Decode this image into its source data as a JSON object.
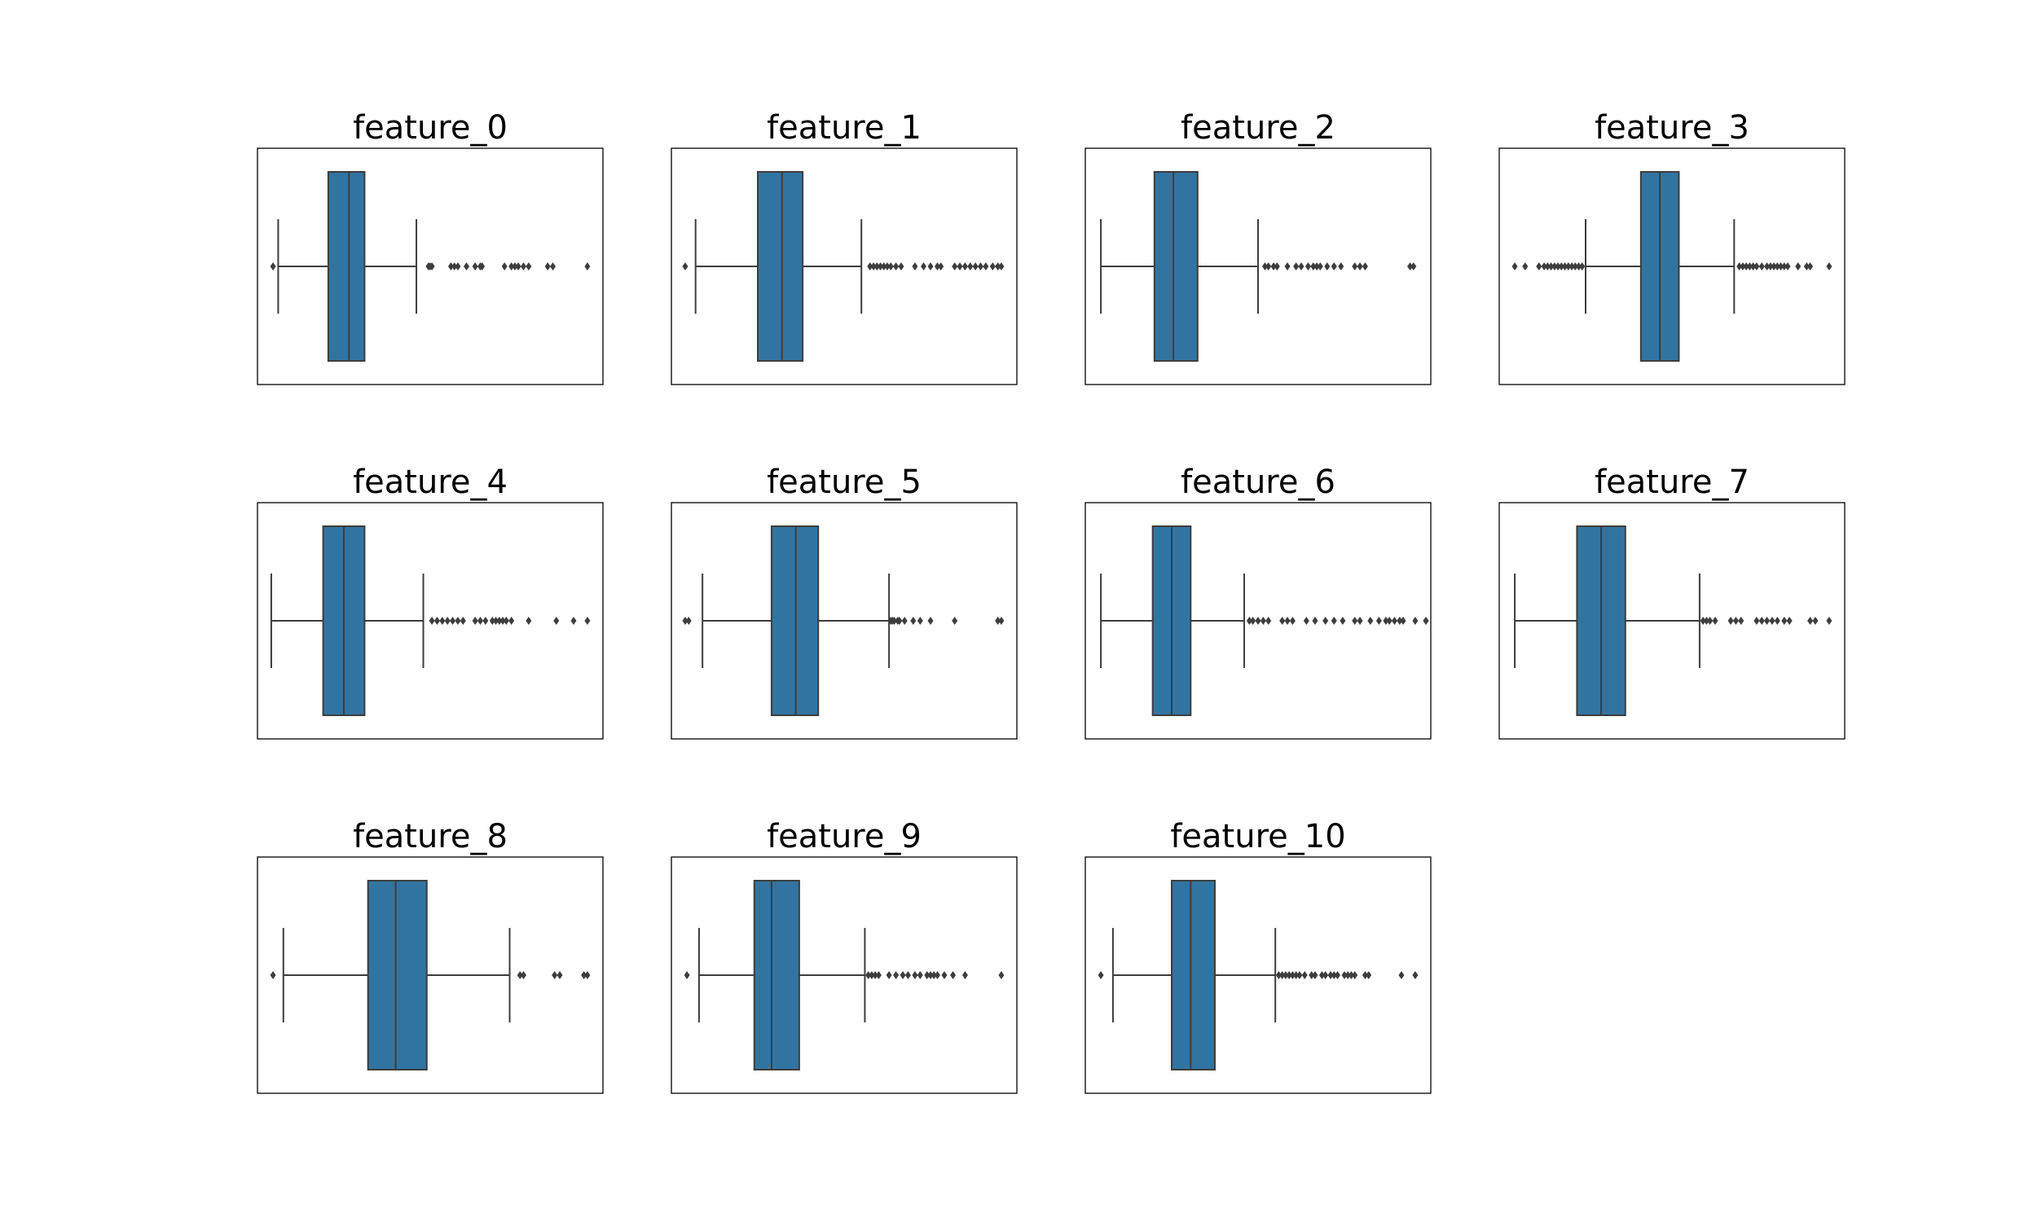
{
  "figure": {
    "layout": "3 rows x 4 columns grid of horizontal box plots",
    "box_color": "#3274a1",
    "line_color": "#3d3d3d"
  },
  "chart_data": [
    {
      "type": "box",
      "title": "feature_0",
      "orientation": "horizontal",
      "xlim": [
        0,
        100
      ],
      "box": {
        "whisker_low": 6,
        "q1": 20.5,
        "median": 26.5,
        "q3": 31,
        "whisker_high": 46
      },
      "outliers": [
        4.5,
        49.5,
        50,
        50.5,
        56,
        57,
        58,
        60.5,
        63,
        64.5,
        65,
        71.5,
        73.5,
        74.5,
        75.5,
        77,
        78.5,
        84,
        85.5,
        95.5
      ]
    },
    {
      "type": "box",
      "title": "feature_1",
      "orientation": "horizontal",
      "xlim": [
        0,
        100
      ],
      "box": {
        "whisker_low": 7,
        "q1": 25,
        "median": 32,
        "q3": 38,
        "whisker_high": 55
      },
      "outliers": [
        4,
        57.5,
        58.5,
        59.5,
        60.5,
        61.5,
        62.5,
        63.5,
        65,
        66.5,
        70.5,
        73,
        75,
        77,
        78,
        82,
        83.5,
        85,
        86.5,
        88,
        89.5,
        91,
        93,
        94.5,
        95.5
      ]
    },
    {
      "type": "box",
      "title": "feature_2",
      "orientation": "horizontal",
      "xlim": [
        0,
        100
      ],
      "box": {
        "whisker_low": 4.5,
        "q1": 20,
        "median": 25.5,
        "q3": 32.5,
        "whisker_high": 50
      },
      "outliers": [
        52,
        53,
        54.5,
        55.5,
        58.5,
        61,
        62.5,
        64.5,
        66,
        67,
        68,
        70,
        72,
        74,
        78,
        79.5,
        81,
        94,
        95
      ]
    },
    {
      "type": "box",
      "title": "feature_3",
      "orientation": "horizontal",
      "xlim": [
        0,
        100
      ],
      "box": {
        "whisker_low": 25,
        "q1": 41,
        "median": 46.5,
        "q3": 52,
        "whisker_high": 68
      },
      "outliers": [
        4.5,
        7.5,
        11.5,
        13,
        14,
        15,
        16,
        17,
        18,
        19,
        20,
        21,
        22,
        23,
        24,
        69.5,
        70.5,
        71.5,
        72.5,
        73.5,
        74.5,
        76,
        77.5,
        78.5,
        79.5,
        80.5,
        81.5,
        82.5,
        83.5,
        86.5,
        89,
        90,
        95.5
      ]
    },
    {
      "type": "box",
      "title": "feature_4",
      "orientation": "horizontal",
      "xlim": [
        0,
        100
      ],
      "box": {
        "whisker_low": 4,
        "q1": 19,
        "median": 25,
        "q3": 31,
        "whisker_high": 48
      },
      "outliers": [
        50.5,
        52,
        53.5,
        55,
        56.5,
        58,
        59.5,
        63,
        64.5,
        66,
        68,
        69,
        70,
        71,
        72,
        73.5,
        78.5,
        86.5,
        91.5,
        95.5
      ]
    },
    {
      "type": "box",
      "title": "feature_5",
      "orientation": "horizontal",
      "xlim": [
        0,
        100
      ],
      "box": {
        "whisker_low": 9,
        "q1": 29,
        "median": 36,
        "q3": 42.5,
        "whisker_high": 63
      },
      "outliers": [
        4,
        5,
        63.5,
        64,
        64.5,
        65.5,
        66,
        67.5,
        70,
        72,
        75,
        82,
        94.5,
        95.5
      ]
    },
    {
      "type": "box",
      "title": "feature_6",
      "orientation": "horizontal",
      "xlim": [
        0,
        100
      ],
      "box": {
        "whisker_low": 4.5,
        "q1": 19.5,
        "median": 25,
        "q3": 30.5,
        "whisker_high": 46
      },
      "outliers": [
        47.5,
        48.5,
        50,
        51.5,
        53,
        57,
        58.5,
        60,
        64,
        66.5,
        69.5,
        72,
        74.5,
        78,
        79.5,
        82.5,
        85,
        87,
        88,
        89.5,
        91,
        92,
        95.5,
        99,
        102.5
      ]
    },
    {
      "type": "box",
      "title": "feature_7",
      "orientation": "horizontal",
      "xlim": [
        0,
        100
      ],
      "box": {
        "whisker_low": 4.5,
        "q1": 22.5,
        "median": 29.5,
        "q3": 36.5,
        "whisker_high": 58
      },
      "outliers": [
        59,
        60,
        61,
        62.5,
        67,
        68.5,
        70,
        74.5,
        76,
        77.5,
        79,
        80.5,
        82.5,
        84,
        90,
        91.5,
        95.5
      ]
    },
    {
      "type": "box",
      "title": "feature_8",
      "orientation": "horizontal",
      "xlim": [
        0,
        100
      ],
      "box": {
        "whisker_low": 7.5,
        "q1": 32,
        "median": 40,
        "q3": 49,
        "whisker_high": 73
      },
      "outliers": [
        4.5,
        76,
        77,
        86,
        87.5,
        94.5,
        95.5
      ]
    },
    {
      "type": "box",
      "title": "feature_9",
      "orientation": "horizontal",
      "xlim": [
        0,
        100
      ],
      "box": {
        "whisker_low": 8,
        "q1": 24,
        "median": 29,
        "q3": 37,
        "whisker_high": 56
      },
      "outliers": [
        4.5,
        57,
        58,
        59,
        60,
        63,
        65,
        67,
        68.5,
        70.5,
        72,
        74,
        75,
        76,
        77,
        79,
        81.5,
        85,
        95.5
      ]
    },
    {
      "type": "box",
      "title": "feature_10",
      "orientation": "horizontal",
      "xlim": [
        0,
        100
      ],
      "box": {
        "whisker_low": 8,
        "q1": 25,
        "median": 30.5,
        "q3": 37.5,
        "whisker_high": 55
      },
      "outliers": [
        4.5,
        56,
        57,
        58,
        59,
        60,
        61,
        62,
        63.5,
        65.5,
        66.5,
        68.5,
        69.5,
        71,
        72,
        73,
        75,
        76,
        77,
        78,
        81,
        82,
        91.5,
        95.5
      ]
    }
  ]
}
